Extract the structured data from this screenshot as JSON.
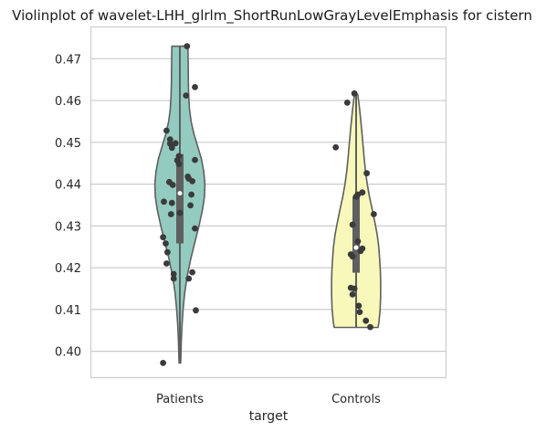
{
  "chart_data": {
    "type": "violin",
    "title": "Violinplot of wavelet-LHH_glrlm_ShortRunLowGrayLevelEmphasis for cistern",
    "xlabel": "target",
    "ylabel": "",
    "ylim": [
      0.3938,
      0.4775
    ],
    "yticks": [
      "0.40",
      "0.41",
      "0.42",
      "0.43",
      "0.44",
      "0.45",
      "0.46",
      "0.47"
    ],
    "grid": true,
    "legend": "none",
    "categories": [
      "Patients",
      "Controls"
    ],
    "violins": [
      {
        "category": "Patients",
        "fill": "#93cbc0",
        "min": 0.3972,
        "max": 0.473,
        "q1": 0.4258,
        "median": 0.4378,
        "q3": 0.4472,
        "profile": [
          [
            0.3972,
            0.9
          ],
          [
            0.402,
            1.5
          ],
          [
            0.406,
            2.3
          ],
          [
            0.41,
            3.5
          ],
          [
            0.414,
            5.3
          ],
          [
            0.418,
            8.0
          ],
          [
            0.422,
            11.8
          ],
          [
            0.426,
            16.3
          ],
          [
            0.43,
            20.9
          ],
          [
            0.434,
            24.9
          ],
          [
            0.437,
            26.9
          ],
          [
            0.44,
            27.4
          ],
          [
            0.443,
            26.2
          ],
          [
            0.446,
            23.6
          ],
          [
            0.449,
            19.5
          ],
          [
            0.452,
            15.4
          ],
          [
            0.455,
            12.3
          ],
          [
            0.458,
            10.5
          ],
          [
            0.461,
            9.7
          ],
          [
            0.464,
            9.3
          ],
          [
            0.467,
            9.2
          ],
          [
            0.47,
            9.0
          ],
          [
            0.473,
            8.8
          ]
        ],
        "points": [
          0.473,
          0.4632,
          0.4612,
          0.4528,
          0.4507,
          0.4497,
          0.4498,
          0.4487,
          0.4467,
          0.4458,
          0.4457,
          0.4448,
          0.4418,
          0.4413,
          0.4407,
          0.4405,
          0.4398,
          0.4375,
          0.4358,
          0.4355,
          0.4349,
          0.4331,
          0.4328,
          0.4294,
          0.4273,
          0.4258,
          0.4237,
          0.421,
          0.4189,
          0.4185,
          0.4174,
          0.4174,
          0.4098,
          0.3972
        ],
        "jitter": [
          0.08,
          0.17,
          0.07,
          -0.15,
          -0.11,
          -0.11,
          -0.05,
          -0.09,
          -0.01,
          0.17,
          -0.03,
          -0.01,
          0.09,
          0.1,
          0.14,
          -0.12,
          -0.08,
          0.13,
          -0.18,
          -0.09,
          0.12,
          0.0,
          -0.1,
          0.17,
          -0.19,
          -0.16,
          -0.14,
          -0.15,
          0.14,
          -0.07,
          -0.07,
          0.1,
          0.18,
          -0.19
        ]
      },
      {
        "category": "Controls",
        "fill": "#f8f8bb",
        "min": 0.4057,
        "max": 0.4615,
        "q1": 0.4188,
        "median": 0.4248,
        "q3": 0.437,
        "profile": [
          [
            0.4057,
            24.0
          ],
          [
            0.407,
            25.0
          ],
          [
            0.41,
            26.3
          ],
          [
            0.413,
            26.8
          ],
          [
            0.416,
            26.9
          ],
          [
            0.419,
            26.6
          ],
          [
            0.422,
            25.8
          ],
          [
            0.425,
            24.8
          ],
          [
            0.428,
            23.0
          ],
          [
            0.431,
            20.4
          ],
          [
            0.434,
            17.6
          ],
          [
            0.437,
            14.6
          ],
          [
            0.44,
            12.2
          ],
          [
            0.443,
            10.3
          ],
          [
            0.446,
            8.9
          ],
          [
            0.449,
            7.7
          ],
          [
            0.452,
            6.5
          ],
          [
            0.455,
            5.2
          ],
          [
            0.458,
            3.8
          ],
          [
            0.4615,
            1.8
          ]
        ],
        "points": [
          0.4617,
          0.4595,
          0.4488,
          0.4426,
          0.438,
          0.4375,
          0.437,
          0.4328,
          0.4303,
          0.4263,
          0.4246,
          0.424,
          0.4232,
          0.4227,
          0.4152,
          0.415,
          0.4136,
          0.4109,
          0.4094,
          0.4073,
          0.4058
        ],
        "jitter": [
          -0.02,
          -0.1,
          -0.23,
          0.12,
          0.07,
          0.02,
          0.0,
          0.2,
          -0.04,
          0.02,
          0.07,
          0.05,
          -0.06,
          -0.04,
          -0.06,
          -0.02,
          -0.04,
          0.03,
          0.04,
          0.11,
          0.16
        ]
      }
    ]
  }
}
